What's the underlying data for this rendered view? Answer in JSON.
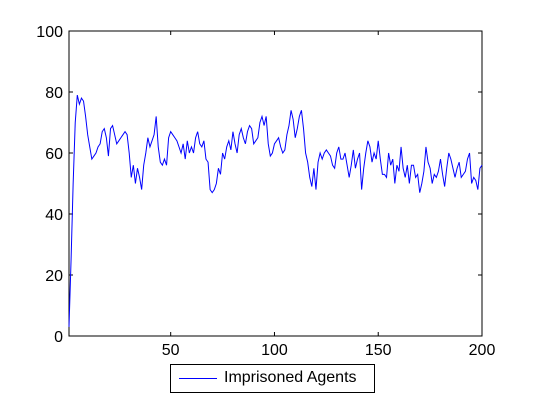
{
  "chart_data": {
    "type": "line",
    "xlim": [
      1,
      200
    ],
    "ylim": [
      0,
      100
    ],
    "xticks": [
      50,
      100,
      150,
      200
    ],
    "yticks": [
      0,
      20,
      40,
      60,
      80,
      100
    ],
    "grid": false,
    "legend_location": "bottom-outside",
    "series": [
      {
        "name": "Imprisoned Agents",
        "color": "#0000ff",
        "x": [
          1,
          2,
          3,
          4,
          5,
          6,
          7,
          8,
          9,
          10,
          11,
          12,
          13,
          14,
          15,
          16,
          17,
          18,
          19,
          20,
          21,
          22,
          23,
          24,
          25,
          26,
          27,
          28,
          29,
          30,
          31,
          32,
          33,
          34,
          35,
          36,
          37,
          38,
          39,
          40,
          41,
          42,
          43,
          44,
          45,
          46,
          47,
          48,
          49,
          50,
          51,
          52,
          53,
          54,
          55,
          56,
          57,
          58,
          59,
          60,
          61,
          62,
          63,
          64,
          65,
          66,
          67,
          68,
          69,
          70,
          71,
          72,
          73,
          74,
          75,
          76,
          77,
          78,
          79,
          80,
          81,
          82,
          83,
          84,
          85,
          86,
          87,
          88,
          89,
          90,
          91,
          92,
          93,
          94,
          95,
          96,
          97,
          98,
          99,
          100,
          101,
          102,
          103,
          104,
          105,
          106,
          107,
          108,
          109,
          110,
          111,
          112,
          113,
          114,
          115,
          116,
          117,
          118,
          119,
          120,
          121,
          122,
          123,
          124,
          125,
          126,
          127,
          128,
          129,
          130,
          131,
          132,
          133,
          134,
          135,
          136,
          137,
          138,
          139,
          140,
          141,
          142,
          143,
          144,
          145,
          146,
          147,
          148,
          149,
          150,
          151,
          152,
          153,
          154,
          155,
          156,
          157,
          158,
          159,
          160,
          161,
          162,
          163,
          164,
          165,
          166,
          167,
          168,
          169,
          170,
          171,
          172,
          173,
          174,
          175,
          176,
          177,
          178,
          179,
          180,
          181,
          182,
          183,
          184,
          185,
          186,
          187,
          188,
          189,
          190,
          191,
          192,
          193,
          194,
          195,
          196,
          197,
          198,
          199,
          200
        ],
        "y": [
          3,
          25,
          50,
          70,
          79,
          76,
          78,
          77,
          72,
          66,
          62,
          58,
          59,
          60,
          62,
          63,
          67,
          68,
          65,
          59,
          68,
          69,
          66,
          63,
          64,
          65,
          66,
          67,
          66,
          60,
          52,
          56,
          50,
          55,
          52,
          48,
          56,
          60,
          65,
          62,
          64,
          66,
          72,
          62,
          57,
          56,
          58,
          56,
          65,
          67,
          66,
          65,
          64,
          62,
          60,
          63,
          58,
          64,
          60,
          62,
          60,
          65,
          67,
          63,
          62,
          64,
          58,
          57,
          48,
          47,
          48,
          50,
          55,
          53,
          60,
          58,
          62,
          64,
          61,
          67,
          63,
          60,
          66,
          68,
          65,
          63,
          67,
          69,
          68,
          63,
          64,
          65,
          70,
          72,
          69,
          72,
          63,
          59,
          60,
          63,
          64,
          65,
          62,
          60,
          61,
          66,
          69,
          74,
          71,
          65,
          68,
          72,
          74,
          68,
          60,
          57,
          52,
          49,
          55,
          48,
          57,
          60,
          58,
          60,
          61,
          60,
          59,
          56,
          55,
          60,
          62,
          58,
          58,
          60,
          56,
          52,
          56,
          61,
          55,
          58,
          60,
          48,
          55,
          60,
          64,
          62,
          57,
          60,
          58,
          64,
          58,
          53,
          53,
          52,
          60,
          56,
          58,
          50,
          56,
          54,
          62,
          55,
          52,
          56,
          50,
          56,
          56,
          52,
          53,
          47,
          50,
          54,
          62,
          57,
          55,
          50,
          53,
          52,
          54,
          58,
          53,
          49,
          55,
          60,
          58,
          55,
          52,
          55,
          57,
          52,
          53,
          54,
          58,
          60,
          50,
          52,
          51,
          48,
          55,
          56
        ]
      }
    ]
  }
}
